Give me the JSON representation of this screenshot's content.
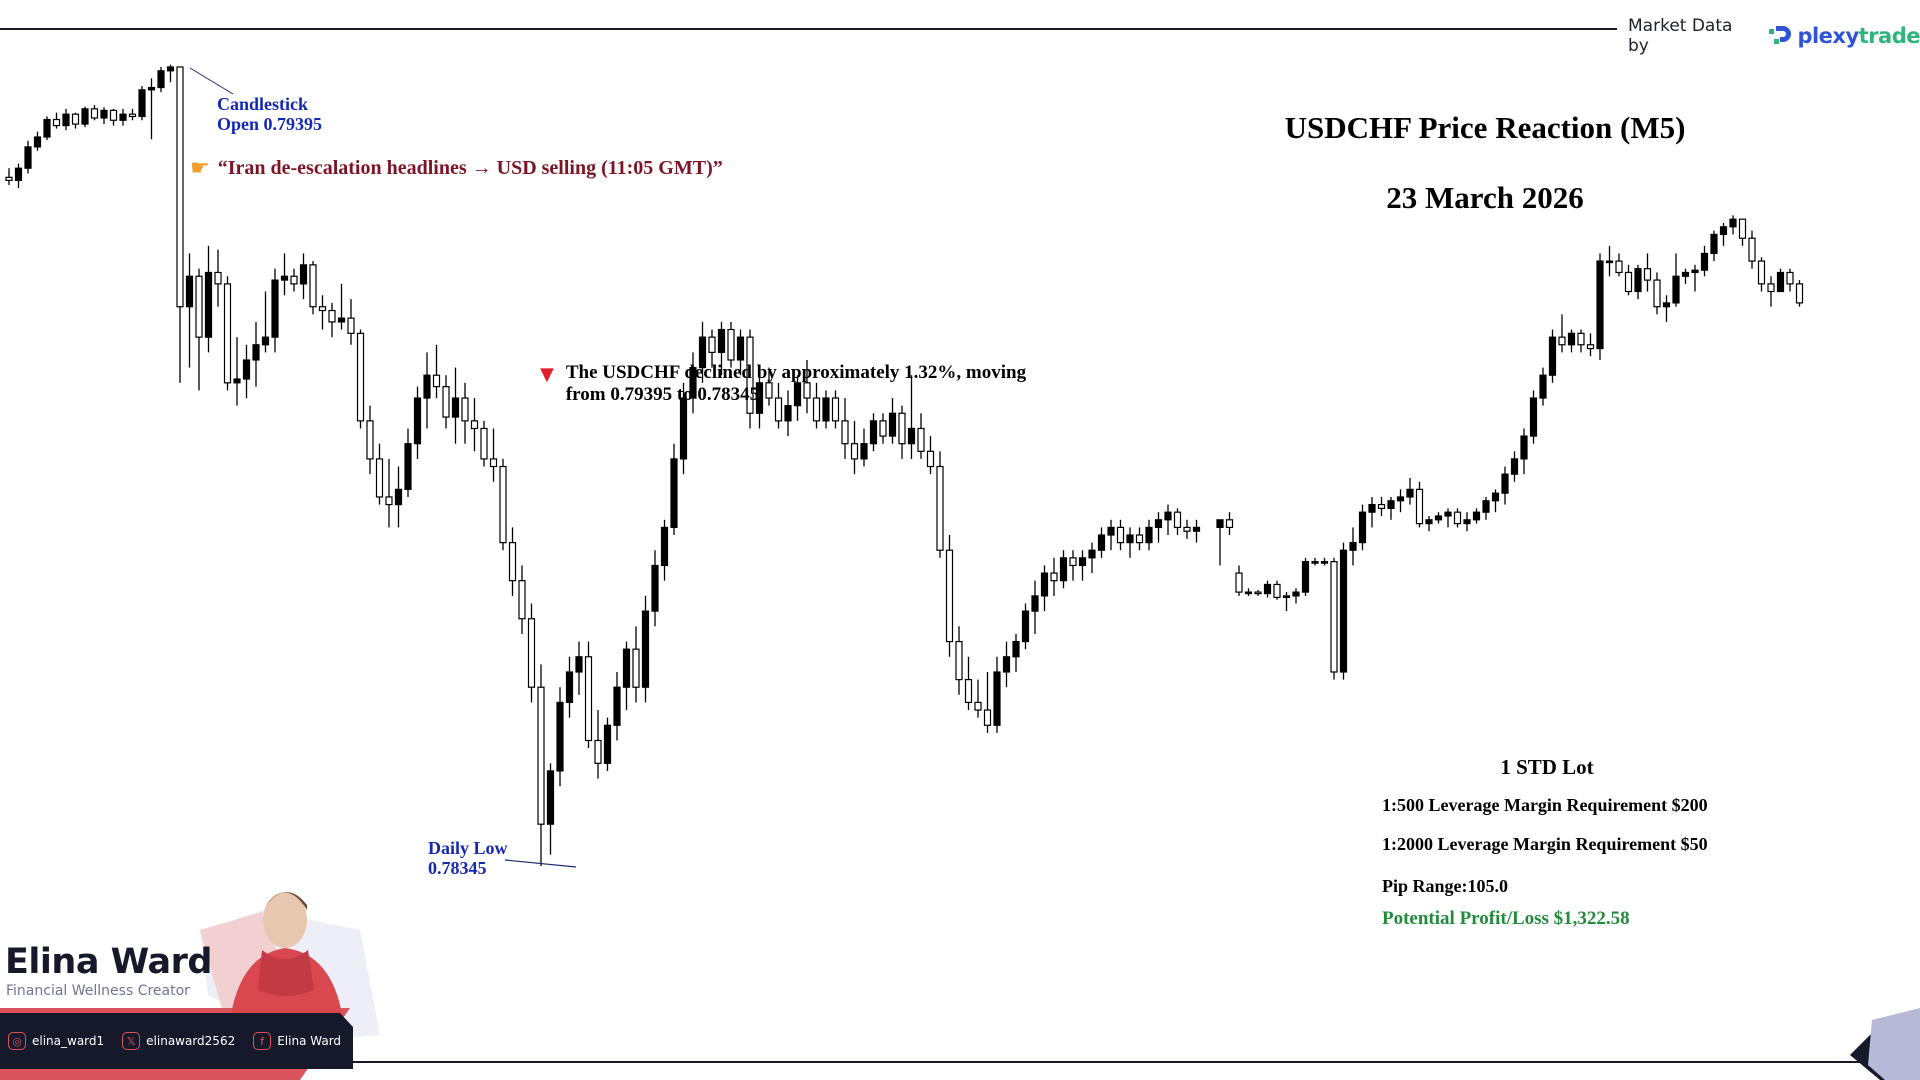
{
  "header": {
    "brand_label": "Market Data by",
    "brand_name_part1": "plexy",
    "brand_name_part2": "trade"
  },
  "title": {
    "main": "USDCHF Price Reaction (M5)",
    "date": "23 March 2026"
  },
  "annotations": {
    "open_label_line1": "Candlestick",
    "open_label_line2": "Open 0.79395",
    "headline": "“Iran de-escalation headlines → USD selling (11:05 GMT)”",
    "headline_icon": "pointing-hand-icon",
    "decline_icon": "down-triangle-icon",
    "decline_text": "The USDCHF declined by approximately 1.32%, moving from 0.79395 to 0.78345.",
    "low_label_line1": "Daily Low",
    "low_label_line2": "0.78345"
  },
  "stats": {
    "lot": "1 STD Lot",
    "margin_500": "1:500 Leverage Margin Requirement $200",
    "margin_2000": "1:2000 Leverage Margin Requirement $50",
    "pip_range": "Pip Range:105.0",
    "profit_loss": "Potential Profit/Loss $1,322.58",
    "profit_color": "#228a3c"
  },
  "creator": {
    "name": "Elina Ward",
    "role": "Financial Wellness Creator",
    "instagram": "elina_ward1",
    "x": "elinaward2562",
    "facebook": "Elina Ward",
    "accent_color": "#d9535c",
    "dark_color": "#15192a"
  },
  "chart_data": {
    "type": "candlestick",
    "title": "USDCHF Price Reaction (M5)",
    "subtitle": "23 March 2026",
    "timeframe": "M5",
    "xlabel": "",
    "ylabel": "",
    "grid": false,
    "legend": "none",
    "key_levels": {
      "open": 0.79395,
      "daily_low": 0.78345,
      "decline_pct": 1.32,
      "pip_range": 105.0
    },
    "ylim": [
      0.7832,
      0.7941
    ],
    "bullish_style": "filled black",
    "bearish_style": "hollow",
    "candles": [
      [
        0.7925,
        0.79262,
        0.7924,
        0.79246
      ],
      [
        0.79246,
        0.79268,
        0.79236,
        0.79262
      ],
      [
        0.79262,
        0.79298,
        0.79255,
        0.7929
      ],
      [
        0.7929,
        0.7931,
        0.79285,
        0.79303
      ],
      [
        0.79303,
        0.7933,
        0.79299,
        0.79326
      ],
      [
        0.79326,
        0.79335,
        0.79314,
        0.79318
      ],
      [
        0.79318,
        0.7934,
        0.79312,
        0.79333
      ],
      [
        0.79333,
        0.79335,
        0.79314,
        0.7932
      ],
      [
        0.7932,
        0.79343,
        0.79316,
        0.7934
      ],
      [
        0.7934,
        0.79345,
        0.79325,
        0.79328
      ],
      [
        0.79328,
        0.79342,
        0.7932,
        0.79338
      ],
      [
        0.79338,
        0.7934,
        0.79318,
        0.79325
      ],
      [
        0.79325,
        0.7934,
        0.79318,
        0.79333
      ],
      [
        0.79333,
        0.7934,
        0.79325,
        0.7933
      ],
      [
        0.7933,
        0.7937,
        0.79325,
        0.79365
      ],
      [
        0.79365,
        0.7938,
        0.793,
        0.79368
      ],
      [
        0.79368,
        0.79395,
        0.79362,
        0.7939
      ],
      [
        0.7939,
        0.79398,
        0.79375,
        0.79395
      ],
      [
        0.79395,
        0.79395,
        0.7898,
        0.7908
      ],
      [
        0.7908,
        0.7915,
        0.79,
        0.7912
      ],
      [
        0.7912,
        0.7913,
        0.7897,
        0.7904
      ],
      [
        0.7904,
        0.7916,
        0.7902,
        0.79125
      ],
      [
        0.79125,
        0.79155,
        0.7908,
        0.7911
      ],
      [
        0.7911,
        0.7912,
        0.7897,
        0.7898
      ],
      [
        0.7898,
        0.7904,
        0.7895,
        0.78985
      ],
      [
        0.78985,
        0.7903,
        0.7896,
        0.7901
      ],
      [
        0.7901,
        0.7906,
        0.78975,
        0.7903
      ],
      [
        0.7903,
        0.791,
        0.7902,
        0.7904
      ],
      [
        0.7904,
        0.7913,
        0.7902,
        0.79115
      ],
      [
        0.79115,
        0.7915,
        0.79095,
        0.7912
      ],
      [
        0.7912,
        0.7913,
        0.791,
        0.7911
      ],
      [
        0.7911,
        0.7915,
        0.7909,
        0.79135
      ],
      [
        0.79135,
        0.7914,
        0.7907,
        0.7908
      ],
      [
        0.7908,
        0.79095,
        0.7905,
        0.79075
      ],
      [
        0.79075,
        0.79085,
        0.7904,
        0.7906
      ],
      [
        0.7906,
        0.7911,
        0.7905,
        0.79065
      ],
      [
        0.79065,
        0.7909,
        0.7903,
        0.79045
      ],
      [
        0.79045,
        0.7905,
        0.7892,
        0.7893
      ],
      [
        0.7893,
        0.7895,
        0.7886,
        0.7888
      ],
      [
        0.7888,
        0.789,
        0.7882,
        0.7883
      ],
      [
        0.7883,
        0.7888,
        0.7879,
        0.7882
      ],
      [
        0.7882,
        0.7887,
        0.7879,
        0.7884
      ],
      [
        0.7884,
        0.7892,
        0.7883,
        0.789
      ],
      [
        0.789,
        0.78975,
        0.7888,
        0.7896
      ],
      [
        0.7896,
        0.7902,
        0.7892,
        0.7899
      ],
      [
        0.7899,
        0.7903,
        0.7896,
        0.78975
      ],
      [
        0.78975,
        0.7899,
        0.7892,
        0.78935
      ],
      [
        0.78935,
        0.79,
        0.789,
        0.7896
      ],
      [
        0.7896,
        0.7898,
        0.789,
        0.7893
      ],
      [
        0.7893,
        0.7896,
        0.7889,
        0.7892
      ],
      [
        0.7892,
        0.7893,
        0.7887,
        0.7888
      ],
      [
        0.7888,
        0.7892,
        0.7885,
        0.7887
      ],
      [
        0.7887,
        0.7888,
        0.7876,
        0.7877
      ],
      [
        0.7877,
        0.7879,
        0.787,
        0.7872
      ],
      [
        0.7872,
        0.7874,
        0.7865,
        0.7867
      ],
      [
        0.7867,
        0.7869,
        0.7856,
        0.7858
      ],
      [
        0.7858,
        0.7861,
        0.78345,
        0.784
      ],
      [
        0.784,
        0.7848,
        0.7836,
        0.7847
      ],
      [
        0.7847,
        0.7858,
        0.7845,
        0.7856
      ],
      [
        0.7856,
        0.7862,
        0.7854,
        0.786
      ],
      [
        0.786,
        0.7864,
        0.7857,
        0.7862
      ],
      [
        0.7862,
        0.7864,
        0.785,
        0.7851
      ],
      [
        0.7851,
        0.7855,
        0.7846,
        0.7848
      ],
      [
        0.7848,
        0.7854,
        0.7847,
        0.7853
      ],
      [
        0.7853,
        0.786,
        0.7851,
        0.7858
      ],
      [
        0.7858,
        0.7864,
        0.7855,
        0.7863
      ],
      [
        0.7863,
        0.7866,
        0.7856,
        0.7858
      ],
      [
        0.7858,
        0.787,
        0.7856,
        0.7868
      ],
      [
        0.7868,
        0.7876,
        0.7866,
        0.7874
      ],
      [
        0.7874,
        0.788,
        0.7872,
        0.7879
      ],
      [
        0.7879,
        0.789,
        0.7878,
        0.7888
      ],
      [
        0.7888,
        0.7898,
        0.7886,
        0.7896
      ],
      [
        0.7896,
        0.7902,
        0.7894,
        0.79
      ],
      [
        0.79,
        0.7906,
        0.7898,
        0.7904
      ],
      [
        0.7904,
        0.7905,
        0.79,
        0.7902
      ],
      [
        0.7902,
        0.7906,
        0.7899,
        0.7905
      ],
      [
        0.7905,
        0.7906,
        0.79,
        0.7901
      ],
      [
        0.7901,
        0.7905,
        0.7899,
        0.7904
      ],
      [
        0.7904,
        0.7905,
        0.7892,
        0.7894
      ],
      [
        0.7894,
        0.7899,
        0.7892,
        0.7898
      ],
      [
        0.7898,
        0.79,
        0.7895,
        0.7896
      ],
      [
        0.7896,
        0.7898,
        0.7892,
        0.7893
      ],
      [
        0.7893,
        0.7897,
        0.7891,
        0.7895
      ],
      [
        0.7895,
        0.7899,
        0.7893,
        0.7898
      ],
      [
        0.7898,
        0.7901,
        0.7894,
        0.7896
      ],
      [
        0.7896,
        0.7898,
        0.7892,
        0.7893
      ],
      [
        0.7893,
        0.7897,
        0.7892,
        0.7896
      ],
      [
        0.7896,
        0.7897,
        0.7892,
        0.7893
      ],
      [
        0.7893,
        0.7896,
        0.7888,
        0.789
      ],
      [
        0.789,
        0.7893,
        0.7886,
        0.7888
      ],
      [
        0.7888,
        0.7892,
        0.7887,
        0.789
      ],
      [
        0.789,
        0.7894,
        0.7889,
        0.7893
      ],
      [
        0.7893,
        0.7894,
        0.789,
        0.7891
      ],
      [
        0.7891,
        0.7896,
        0.789,
        0.7894
      ],
      [
        0.7894,
        0.7895,
        0.7888,
        0.789
      ],
      [
        0.789,
        0.7899,
        0.7888,
        0.7892
      ],
      [
        0.7892,
        0.7894,
        0.7888,
        0.7889
      ],
      [
        0.7889,
        0.7891,
        0.7886,
        0.7887
      ],
      [
        0.7887,
        0.7889,
        0.7875,
        0.7876
      ],
      [
        0.7876,
        0.7878,
        0.7862,
        0.7864
      ],
      [
        0.7864,
        0.7866,
        0.7857,
        0.7859
      ],
      [
        0.7859,
        0.7862,
        0.7855,
        0.7856
      ],
      [
        0.7856,
        0.7859,
        0.7854,
        0.7855
      ],
      [
        0.7855,
        0.786,
        0.7852,
        0.7853
      ],
      [
        0.7853,
        0.7862,
        0.7852,
        0.786
      ],
      [
        0.786,
        0.7864,
        0.7858,
        0.7862
      ],
      [
        0.7862,
        0.7865,
        0.786,
        0.7864
      ],
      [
        0.7864,
        0.7869,
        0.7863,
        0.7868
      ],
      [
        0.7868,
        0.7872,
        0.7865,
        0.787
      ],
      [
        0.787,
        0.7874,
        0.7868,
        0.7873
      ],
      [
        0.7873,
        0.7875,
        0.787,
        0.7872
      ],
      [
        0.7872,
        0.7876,
        0.7871,
        0.7875
      ],
      [
        0.7875,
        0.7876,
        0.7872,
        0.7874
      ],
      [
        0.7874,
        0.7876,
        0.7872,
        0.7875
      ],
      [
        0.7875,
        0.7877,
        0.7873,
        0.7876
      ],
      [
        0.7876,
        0.7879,
        0.7875,
        0.7878
      ],
      [
        0.7878,
        0.788,
        0.7876,
        0.7879
      ],
      [
        0.7879,
        0.788,
        0.7876,
        0.7877
      ],
      [
        0.7877,
        0.7879,
        0.7875,
        0.7878
      ],
      [
        0.7878,
        0.7879,
        0.7876,
        0.7877
      ],
      [
        0.7877,
        0.788,
        0.7876,
        0.7879
      ],
      [
        0.7879,
        0.7881,
        0.7877,
        0.788
      ],
      [
        0.788,
        0.7882,
        0.7878,
        0.7881
      ],
      [
        0.7881,
        0.78815,
        0.7878,
        0.7879
      ],
      [
        0.7879,
        0.788,
        0.78775,
        0.78785
      ],
      [
        0.78785,
        0.788,
        0.7877,
        0.7879
      ],
      [
        0.7879,
        0.788,
        0.7874,
        0.788
      ],
      [
        0.788,
        0.7881,
        0.7878,
        0.7879
      ],
      [
        0.7873,
        0.7874,
        0.787,
        0.78705
      ],
      [
        0.78705,
        0.7871,
        0.787,
        0.78705
      ],
      [
        0.78705,
        0.78708,
        0.787,
        0.78703
      ],
      [
        0.78703,
        0.7872,
        0.78698,
        0.78715
      ],
      [
        0.78715,
        0.7872,
        0.78695,
        0.78698
      ],
      [
        0.78698,
        0.78705,
        0.7868,
        0.787
      ],
      [
        0.787,
        0.7871,
        0.7869,
        0.78705
      ],
      [
        0.78705,
        0.7875,
        0.787,
        0.78745
      ],
      [
        0.78745,
        0.7875,
        0.7874,
        0.78745
      ],
      [
        0.78745,
        0.7875,
        0.7874,
        0.78745
      ],
      [
        0.78745,
        0.7875,
        0.7859,
        0.786
      ],
      [
        0.786,
        0.7877,
        0.7859,
        0.7876
      ],
      [
        0.7876,
        0.7879,
        0.7874,
        0.7877
      ],
      [
        0.7877,
        0.7882,
        0.7876,
        0.7881
      ],
      [
        0.7881,
        0.7883,
        0.7879,
        0.7882
      ],
      [
        0.7882,
        0.7883,
        0.78805,
        0.78815
      ],
      [
        0.78815,
        0.7883,
        0.788,
        0.78825
      ],
      [
        0.78825,
        0.7884,
        0.7881,
        0.7883
      ],
      [
        0.7883,
        0.78855,
        0.7882,
        0.7884
      ],
      [
        0.7884,
        0.7885,
        0.7879,
        0.78795
      ],
      [
        0.78795,
        0.78805,
        0.78785,
        0.788
      ],
      [
        0.788,
        0.7881,
        0.78795,
        0.78805
      ],
      [
        0.78805,
        0.78815,
        0.7879,
        0.7881
      ],
      [
        0.7881,
        0.78815,
        0.7879,
        0.78795
      ],
      [
        0.78795,
        0.7881,
        0.78785,
        0.788
      ],
      [
        0.788,
        0.78815,
        0.78795,
        0.7881
      ],
      [
        0.7881,
        0.7883,
        0.788,
        0.78825
      ],
      [
        0.78825,
        0.7884,
        0.7881,
        0.78835
      ],
      [
        0.78835,
        0.7887,
        0.7882,
        0.7886
      ],
      [
        0.7886,
        0.7889,
        0.7885,
        0.7888
      ],
      [
        0.7888,
        0.7892,
        0.7886,
        0.7891
      ],
      [
        0.7891,
        0.7897,
        0.789,
        0.7896
      ],
      [
        0.7896,
        0.79,
        0.7895,
        0.7899
      ],
      [
        0.7899,
        0.7905,
        0.7898,
        0.7904
      ],
      [
        0.7904,
        0.7907,
        0.7902,
        0.7903
      ],
      [
        0.7903,
        0.7905,
        0.7902,
        0.79045
      ],
      [
        0.79045,
        0.7905,
        0.7902,
        0.7903
      ],
      [
        0.7903,
        0.79045,
        0.79015,
        0.79025
      ],
      [
        0.79025,
        0.7915,
        0.7901,
        0.7914
      ],
      [
        0.7914,
        0.7916,
        0.7912,
        0.7914
      ],
      [
        0.7914,
        0.7915,
        0.7912,
        0.79125
      ],
      [
        0.79125,
        0.79135,
        0.79095,
        0.791
      ],
      [
        0.791,
        0.79135,
        0.7909,
        0.7913
      ],
      [
        0.7913,
        0.7915,
        0.791,
        0.79115
      ],
      [
        0.79115,
        0.79125,
        0.7907,
        0.7908
      ],
      [
        0.7908,
        0.79095,
        0.7906,
        0.79085
      ],
      [
        0.79085,
        0.7915,
        0.7908,
        0.7912
      ],
      [
        0.7912,
        0.7913,
        0.7911,
        0.79125
      ],
      [
        0.79125,
        0.79135,
        0.791,
        0.79128
      ],
      [
        0.79128,
        0.7916,
        0.7912,
        0.7915
      ],
      [
        0.7915,
        0.7918,
        0.7914,
        0.79175
      ],
      [
        0.79175,
        0.7919,
        0.7916,
        0.79185
      ],
      [
        0.79185,
        0.792,
        0.79175,
        0.79195
      ],
      [
        0.79195,
        0.79195,
        0.7916,
        0.7917
      ],
      [
        0.7917,
        0.7918,
        0.7913,
        0.7914
      ],
      [
        0.7914,
        0.79145,
        0.791,
        0.7911
      ],
      [
        0.7911,
        0.7912,
        0.7908,
        0.791
      ],
      [
        0.791,
        0.7913,
        0.791,
        0.79125
      ],
      [
        0.79125,
        0.7913,
        0.791,
        0.7911
      ],
      [
        0.7911,
        0.79115,
        0.7908,
        0.79085
      ]
    ]
  }
}
